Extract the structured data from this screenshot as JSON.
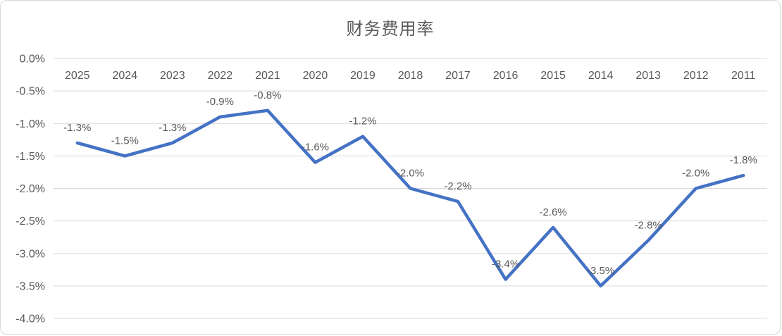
{
  "title": "财务费用率",
  "colors": {
    "line": "#4472C4",
    "gridline": "#D9D9D9",
    "text": "#595959",
    "border": "#D7D7D7",
    "background": "#FFFFFF"
  },
  "chart_data": {
    "type": "line",
    "title": "财务费用率",
    "categories": [
      "2025",
      "2024",
      "2023",
      "2022",
      "2021",
      "2020",
      "2019",
      "2018",
      "2017",
      "2016",
      "2015",
      "2014",
      "2013",
      "2012",
      "2011"
    ],
    "values": [
      -1.3,
      -1.5,
      -1.3,
      -0.9,
      -0.8,
      -1.6,
      -1.2,
      -2.0,
      -2.2,
      -3.4,
      -2.6,
      -3.5,
      -2.8,
      -2.0,
      -1.8
    ],
    "data_labels": [
      "-1.3%",
      "-1.5%",
      "-1.3%",
      "-0.9%",
      "-0.8%",
      "-1.6%",
      "-1.2%",
      "-2.0%",
      "-2.2%",
      "-3.4%",
      "-2.6%",
      "-3.5%",
      "-2.8%",
      "-2.0%",
      "-1.8%"
    ],
    "y_tick_labels": [
      "0.0%",
      "-0.5%",
      "-1.0%",
      "-1.5%",
      "-2.0%",
      "-2.5%",
      "-3.0%",
      "-3.5%",
      "-4.0%"
    ],
    "y_tick_values": [
      0.0,
      -0.5,
      -1.0,
      -1.5,
      -2.0,
      -2.5,
      -3.0,
      -3.5,
      -4.0
    ],
    "ylim": [
      -4.0,
      0.0
    ],
    "xlabel": "",
    "ylabel": "",
    "grid": true,
    "legend_position": "none",
    "data_label_position": "above"
  }
}
